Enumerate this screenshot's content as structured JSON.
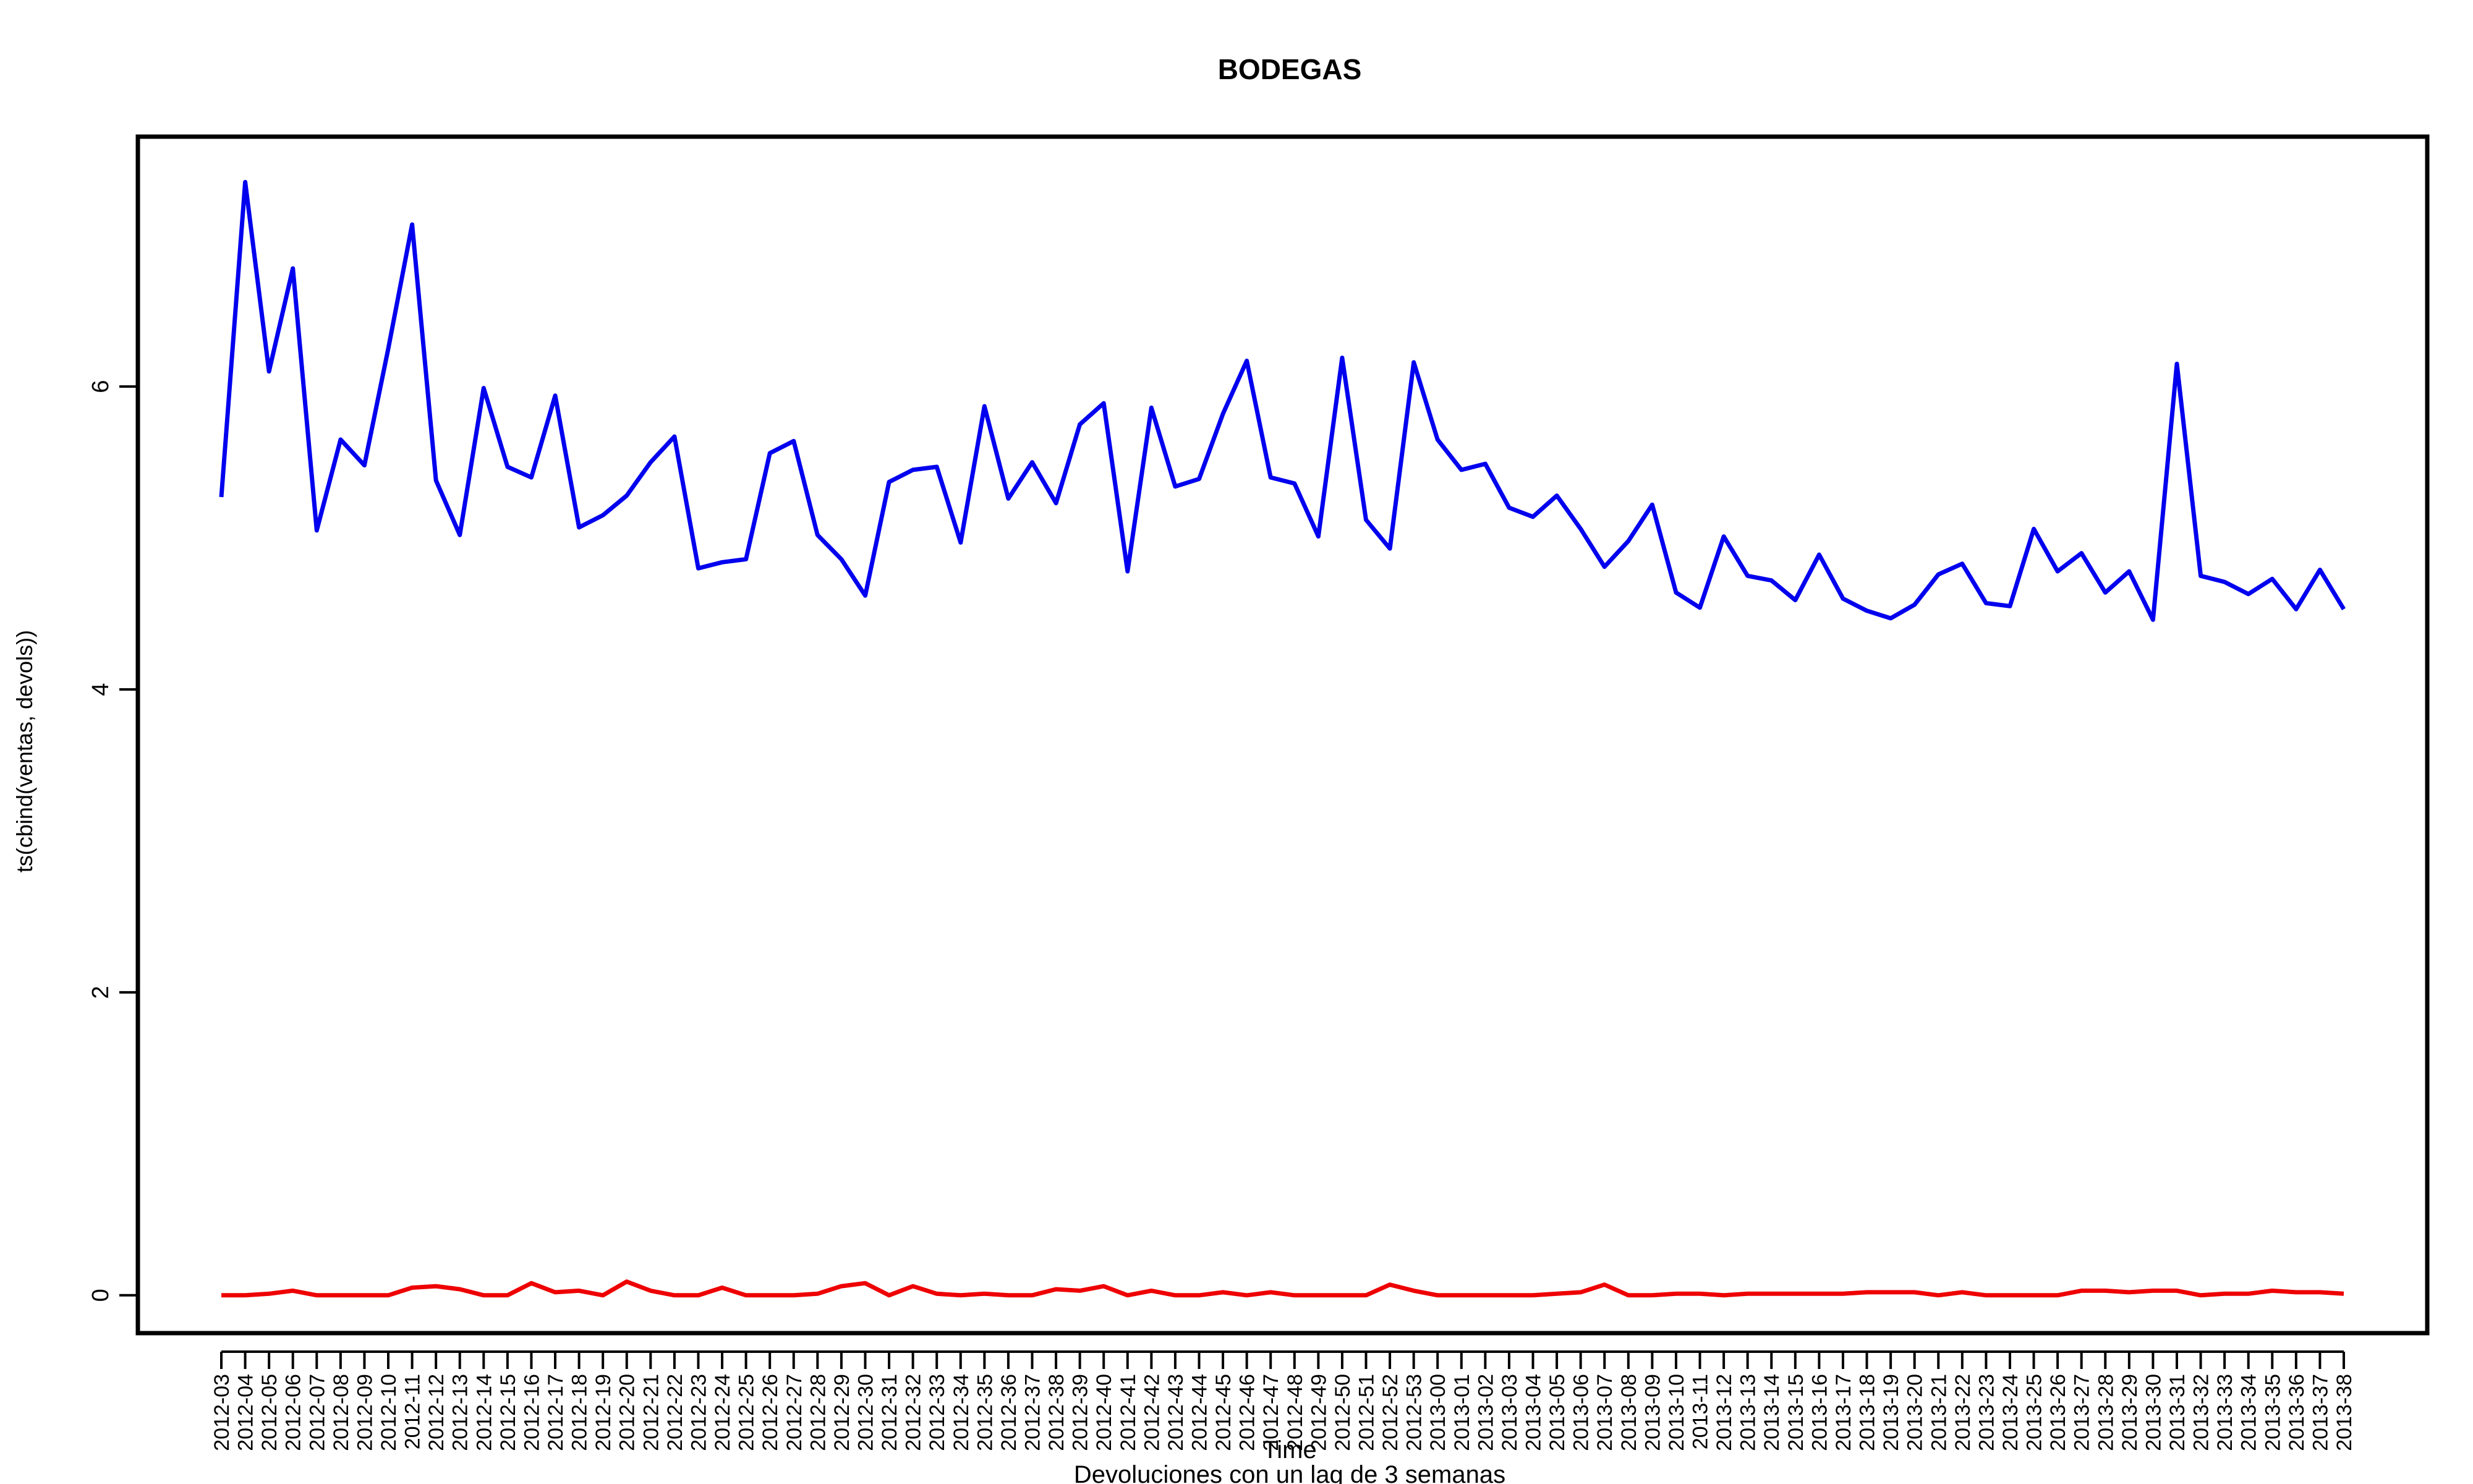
{
  "chart_data": {
    "type": "line",
    "title": "BODEGAS",
    "xlabel": "Time",
    "ylabel": "ts(cbind(ventas, devols))",
    "subtitle": "Devoluciones con un lag de 3 semanas",
    "ylim": [
      -0.25,
      7.65
    ],
    "yticks": [
      0,
      2,
      4,
      6
    ],
    "grid": false,
    "categories": [
      "2012-03",
      "2012-04",
      "2012-05",
      "2012-06",
      "2012-07",
      "2012-08",
      "2012-09",
      "2012-10",
      "2012-11",
      "2012-12",
      "2012-13",
      "2012-14",
      "2012-15",
      "2012-16",
      "2012-17",
      "2012-18",
      "2012-19",
      "2012-20",
      "2012-21",
      "2012-22",
      "2012-23",
      "2012-24",
      "2012-25",
      "2012-26",
      "2012-27",
      "2012-28",
      "2012-29",
      "2012-30",
      "2012-31",
      "2012-32",
      "2012-33",
      "2012-34",
      "2012-35",
      "2012-36",
      "2012-37",
      "2012-38",
      "2012-39",
      "2012-40",
      "2012-41",
      "2012-42",
      "2012-43",
      "2012-44",
      "2012-45",
      "2012-46",
      "2012-47",
      "2012-48",
      "2012-49",
      "2012-50",
      "2012-51",
      "2012-52",
      "2012-53",
      "2013-00",
      "2013-01",
      "2013-02",
      "2013-03",
      "2013-04",
      "2013-05",
      "2013-06",
      "2013-07",
      "2013-08",
      "2013-09",
      "2013-10",
      "2013-11",
      "2013-12",
      "2013-13",
      "2013-14",
      "2013-15",
      "2013-16",
      "2013-17",
      "2013-18",
      "2013-19",
      "2013-20",
      "2013-21",
      "2013-22",
      "2013-23",
      "2013-24",
      "2013-25",
      "2013-26",
      "2013-27",
      "2013-28",
      "2013-29",
      "2013-30",
      "2013-31",
      "2013-32",
      "2013-33",
      "2013-34",
      "2013-35",
      "2013-36",
      "2013-37",
      "2013-38"
    ],
    "series": [
      {
        "color": "#0000ee",
        "values": [
          5.27,
          7.35,
          6.1,
          6.78,
          5.05,
          5.65,
          5.48,
          6.25,
          7.07,
          5.38,
          5.02,
          5.99,
          5.47,
          5.4,
          5.94,
          5.07,
          5.15,
          5.28,
          5.5,
          5.67,
          4.8,
          4.84,
          4.86,
          5.56,
          5.64,
          5.02,
          4.86,
          4.62,
          5.37,
          5.45,
          5.47,
          4.97,
          5.87,
          5.26,
          5.5,
          5.23,
          5.75,
          5.89,
          4.78,
          5.86,
          5.34,
          5.39,
          5.82,
          6.17,
          5.4,
          5.36,
          5.01,
          6.19,
          5.12,
          4.93,
          6.16,
          5.65,
          5.45,
          5.49,
          5.2,
          5.14,
          5.28,
          5.06,
          4.81,
          4.98,
          5.22,
          4.64,
          4.54,
          5.01,
          4.75,
          4.72,
          4.59,
          4.89,
          4.6,
          4.52,
          4.47,
          4.56,
          4.76,
          4.83,
          4.57,
          4.55,
          5.06,
          4.78,
          4.9,
          4.64,
          4.78,
          4.46,
          6.15,
          4.75,
          4.71,
          4.63,
          4.73,
          4.53,
          4.79,
          4.53
        ]
      },
      {
        "color": "#ee0000",
        "values": [
          0.0,
          0.0,
          0.01,
          0.03,
          0.0,
          0.0,
          0.0,
          0.0,
          0.05,
          0.06,
          0.04,
          0.0,
          0.0,
          0.08,
          0.02,
          0.03,
          0.0,
          0.09,
          0.03,
          0.0,
          0.0,
          0.05,
          0.0,
          0.0,
          0.0,
          0.01,
          0.06,
          0.08,
          0.0,
          0.06,
          0.01,
          0.0,
          0.01,
          0.0,
          0.0,
          0.04,
          0.03,
          0.06,
          0.0,
          0.03,
          0.0,
          0.0,
          0.02,
          0.0,
          0.02,
          0.0,
          0.0,
          0.0,
          0.0,
          0.07,
          0.03,
          0.0,
          0.0,
          0.0,
          0.0,
          0.0,
          0.01,
          0.02,
          0.07,
          0.0,
          0.0,
          0.01,
          0.01,
          0.0,
          0.01,
          0.01,
          0.01,
          0.01,
          0.01,
          0.02,
          0.02,
          0.02,
          0.0,
          0.02,
          0.0,
          0.0,
          0.0,
          0.0,
          0.03,
          0.03,
          0.02,
          0.03,
          0.03,
          0.0,
          0.01,
          0.01,
          0.03,
          0.02,
          0.02,
          0.01
        ]
      }
    ]
  }
}
